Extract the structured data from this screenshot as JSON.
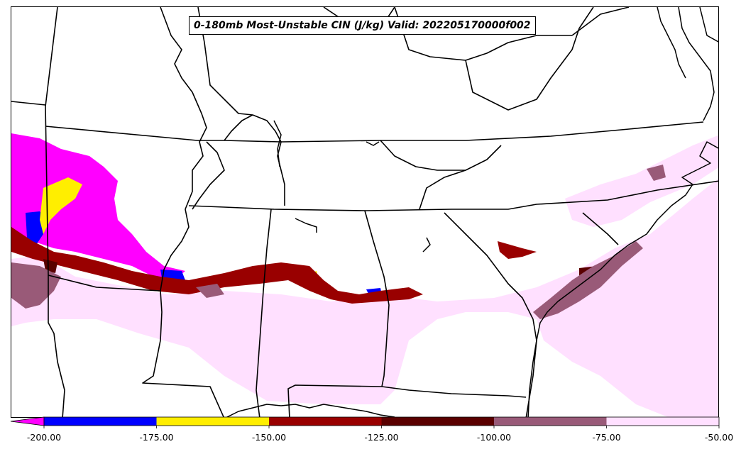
{
  "map": {
    "title": "0-180mb Most-Unstable CIN (J/kg) Valid: 202205170000f002"
  },
  "colorbar": {
    "ticks": [
      "-200.00",
      "-175.00",
      "-150.00",
      "-125.00",
      "-100.00",
      "-75.00",
      "-50.00"
    ],
    "bins": [
      {
        "from": -225,
        "to": -200,
        "color": "#ff00ff"
      },
      {
        "from": -200,
        "to": -175,
        "color": "#0000ff"
      },
      {
        "from": -175,
        "to": -150,
        "color": "#ffee00"
      },
      {
        "from": -150,
        "to": -125,
        "color": "#990000"
      },
      {
        "from": -125,
        "to": -100,
        "color": "#5a0000"
      },
      {
        "from": -100,
        "to": -75,
        "color": "#995a78"
      },
      {
        "from": -75,
        "to": -50,
        "color": "#ffe0ff"
      }
    ]
  }
}
